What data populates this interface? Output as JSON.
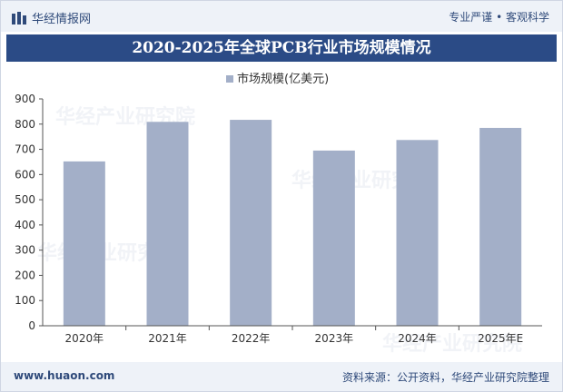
{
  "header": {
    "logo_text": "华经情报网",
    "slogan": "专业严谨 • 客观科学"
  },
  "footer": {
    "site": "www.huaon.com",
    "source": "资料来源：公开资料，华经产业研究院整理"
  },
  "watermark": "华经产业研究院",
  "colors": {
    "bar": "#a3afc8",
    "title_bg": "#2b4b86",
    "bar_bg": "#eef2f8"
  },
  "chart_data": {
    "type": "bar",
    "title": "2020-2025年全球PCB行业市场规模情况",
    "legend": "市场规模(亿美元)",
    "legend_position": "top-center",
    "categories": [
      "2020年",
      "2021年",
      "2022年",
      "2023年",
      "2024年",
      "2025年E"
    ],
    "values": [
      652,
      809,
      817,
      695,
      737,
      785
    ],
    "ylim": [
      0,
      900
    ],
    "yticks": [
      0,
      100,
      200,
      300,
      400,
      500,
      600,
      700,
      800,
      900
    ],
    "grid": false
  }
}
